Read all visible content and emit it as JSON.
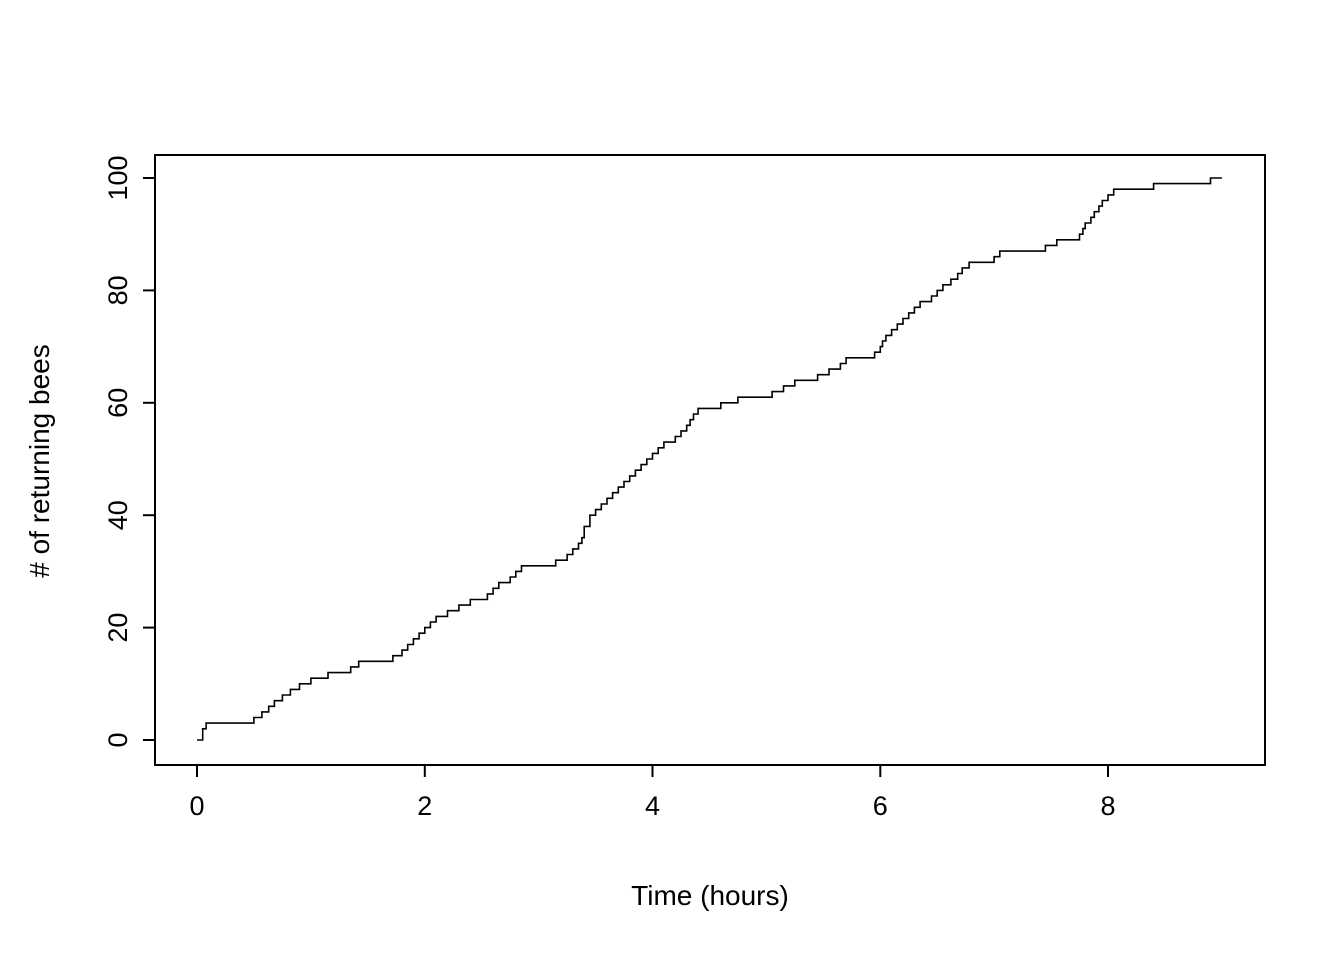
{
  "figure": {
    "background": "#ffffff",
    "line_color": "#000000",
    "axis_color": "#000000"
  },
  "chart_data": {
    "type": "line",
    "subtype": "step-after",
    "title": "",
    "xlabel": "Time (hours)",
    "ylabel": "# of returning bees",
    "xlim": [
      0,
      9
    ],
    "ylim": [
      0,
      100
    ],
    "xticks": [
      0,
      2,
      4,
      6,
      8
    ],
    "yticks": [
      0,
      20,
      40,
      60,
      80,
      100
    ],
    "grid": false,
    "legend": null,
    "x": [
      0.0,
      0.05,
      0.08,
      0.5,
      0.57,
      0.63,
      0.68,
      0.75,
      0.82,
      0.9,
      1.0,
      1.15,
      1.35,
      1.42,
      1.72,
      1.8,
      1.85,
      1.9,
      1.95,
      2.0,
      2.05,
      2.1,
      2.2,
      2.3,
      2.4,
      2.55,
      2.6,
      2.65,
      2.75,
      2.8,
      2.85,
      3.15,
      3.25,
      3.3,
      3.35,
      3.38,
      3.4,
      3.45,
      3.5,
      3.55,
      3.6,
      3.65,
      3.7,
      3.75,
      3.8,
      3.85,
      3.9,
      3.95,
      4.0,
      4.05,
      4.1,
      4.2,
      4.25,
      4.3,
      4.33,
      4.36,
      4.4,
      4.6,
      4.75,
      5.05,
      5.15,
      5.25,
      5.45,
      5.55,
      5.65,
      5.7,
      5.95,
      6.0,
      6.02,
      6.05,
      6.1,
      6.15,
      6.2,
      6.25,
      6.3,
      6.35,
      6.45,
      6.5,
      6.55,
      6.62,
      6.68,
      6.72,
      6.78,
      7.0,
      7.05,
      7.45,
      7.55,
      7.75,
      7.78,
      7.8,
      7.85,
      7.88,
      7.92,
      7.95,
      8.0,
      8.05,
      8.4,
      8.9
    ],
    "y": [
      0,
      2,
      3,
      4,
      5,
      6,
      7,
      8,
      9,
      10,
      11,
      12,
      13,
      14,
      15,
      16,
      17,
      18,
      19,
      20,
      21,
      22,
      23,
      24,
      25,
      26,
      27,
      28,
      29,
      30,
      31,
      32,
      33,
      34,
      35,
      36,
      38,
      40,
      41,
      42,
      43,
      44,
      45,
      46,
      47,
      48,
      49,
      50,
      51,
      52,
      53,
      54,
      55,
      56,
      57,
      58,
      59,
      60,
      61,
      62,
      63,
      64,
      65,
      66,
      67,
      68,
      69,
      70,
      71,
      72,
      73,
      74,
      75,
      76,
      77,
      78,
      79,
      80,
      81,
      82,
      83,
      84,
      85,
      86,
      87,
      88,
      89,
      90,
      91,
      92,
      93,
      94,
      95,
      96,
      97,
      98,
      99,
      100
    ]
  }
}
